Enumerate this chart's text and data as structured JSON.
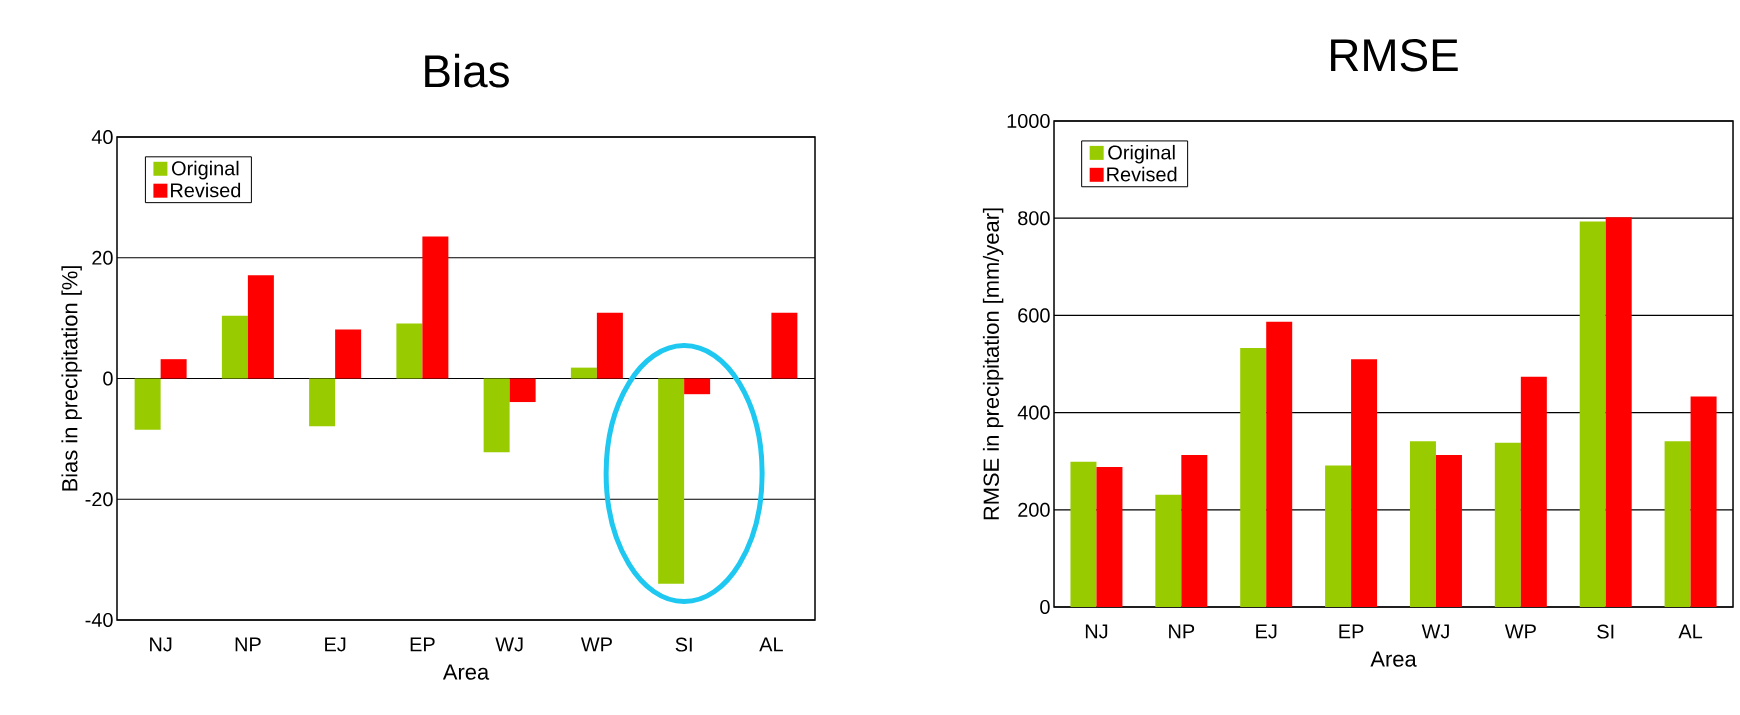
{
  "chart_data": [
    {
      "type": "bar",
      "title": "Bias",
      "xlabel": "Area",
      "ylabel": "Bias in precipitation [%]",
      "categories": [
        "NJ",
        "NP",
        "EJ",
        "EP",
        "WJ",
        "WP",
        "SI",
        "AL"
      ],
      "series": [
        {
          "name": "Original",
          "color": "#99cc00",
          "values": [
            -8.5,
            10.4,
            -7.9,
            9.1,
            -12.2,
            1.8,
            -34.0,
            null
          ]
        },
        {
          "name": "Revised",
          "color": "#ff0000",
          "values": [
            3.2,
            17.1,
            8.1,
            23.5,
            -3.9,
            10.9,
            -2.6,
            10.9
          ]
        }
      ],
      "ylim": [
        -40,
        40
      ],
      "yticks": [
        -40,
        -20,
        0,
        20,
        40
      ],
      "grid": "y",
      "legend": "top left"
    },
    {
      "type": "bar",
      "title": "RMSE",
      "xlabel": "Area",
      "ylabel": "RMSE in precipitation [mm/year]",
      "categories": [
        "NJ",
        "NP",
        "EJ",
        "EP",
        "WJ",
        "WP",
        "SI",
        "AL"
      ],
      "series": [
        {
          "name": "Original",
          "color": "#99cc00",
          "values": [
            299,
            231,
            533,
            291,
            341,
            338,
            793,
            341
          ]
        },
        {
          "name": "Revised",
          "color": "#ff0000",
          "values": [
            288,
            313,
            587,
            510,
            313,
            474,
            802,
            433
          ]
        }
      ],
      "ylim": [
        0,
        1000
      ],
      "yticks": [
        0,
        200,
        400,
        600,
        800,
        1000
      ],
      "grid": "y",
      "legend": "top left"
    }
  ]
}
